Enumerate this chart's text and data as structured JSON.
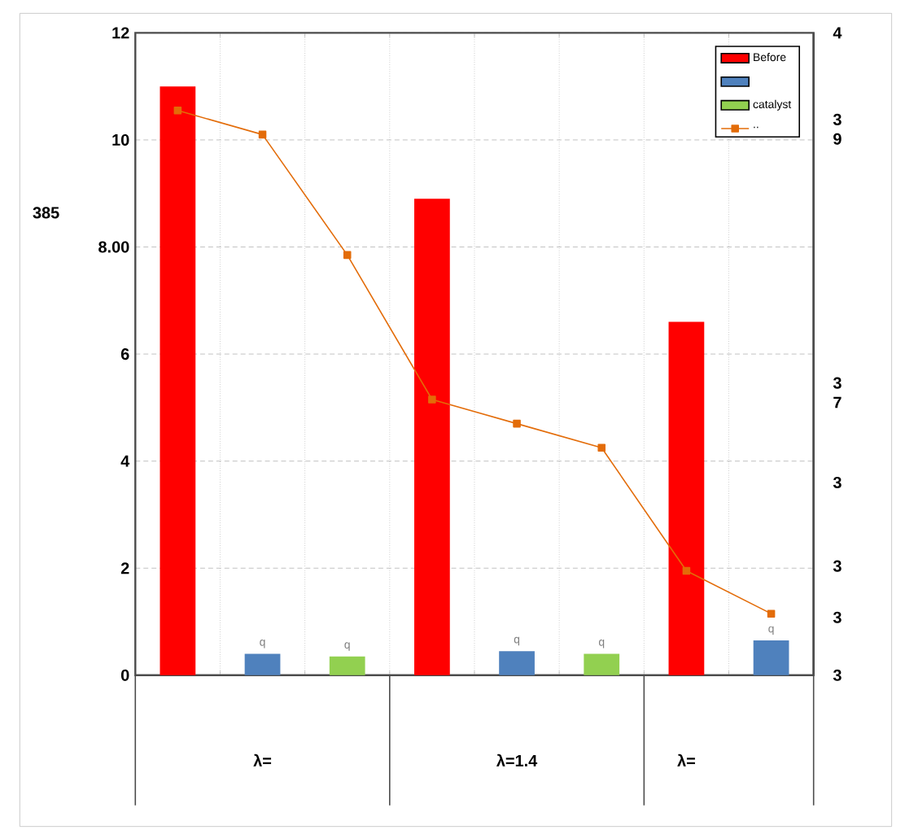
{
  "chart_data": {
    "type": "bar",
    "categories": [
      null,
      "λ=",
      null,
      null,
      "λ=1.4",
      null,
      "λ=",
      null
    ],
    "series": [
      {
        "name": "Before",
        "color": "#ff0000",
        "values": [
          11.0,
          null,
          null,
          8.9,
          null,
          null,
          6.6,
          null
        ]
      },
      {
        "color": "#4f81bd",
        "values": [
          null,
          0.4,
          null,
          null,
          0.45,
          null,
          null,
          0.65
        ],
        "value_labels": [
          null,
          "q",
          null,
          null,
          "q",
          null,
          null,
          "q"
        ]
      },
      {
        "name": "catalyst",
        "color": "#92d050",
        "values": [
          null,
          null,
          0.35,
          null,
          null,
          0.4,
          null,
          null
        ],
        "value_labels": [
          null,
          null,
          "q",
          null,
          null,
          "q",
          null,
          null
        ]
      },
      {
        "name": "..",
        "type": "line",
        "color": "#e36c09",
        "marker": "square",
        "values": [
          10.55,
          10.1,
          7.85,
          5.15,
          4.7,
          4.25,
          1.95,
          1.15
        ]
      }
    ],
    "ylim": [
      0,
      12
    ],
    "yticks": [
      0,
      2,
      4,
      6,
      {
        "value": 8,
        "label": "8.00"
      },
      10,
      12
    ],
    "annotations": [
      "385",
      "4",
      "3 9",
      "3 7",
      "3",
      "3",
      "3",
      "3"
    ],
    "grid": true,
    "legend": "top right"
  }
}
